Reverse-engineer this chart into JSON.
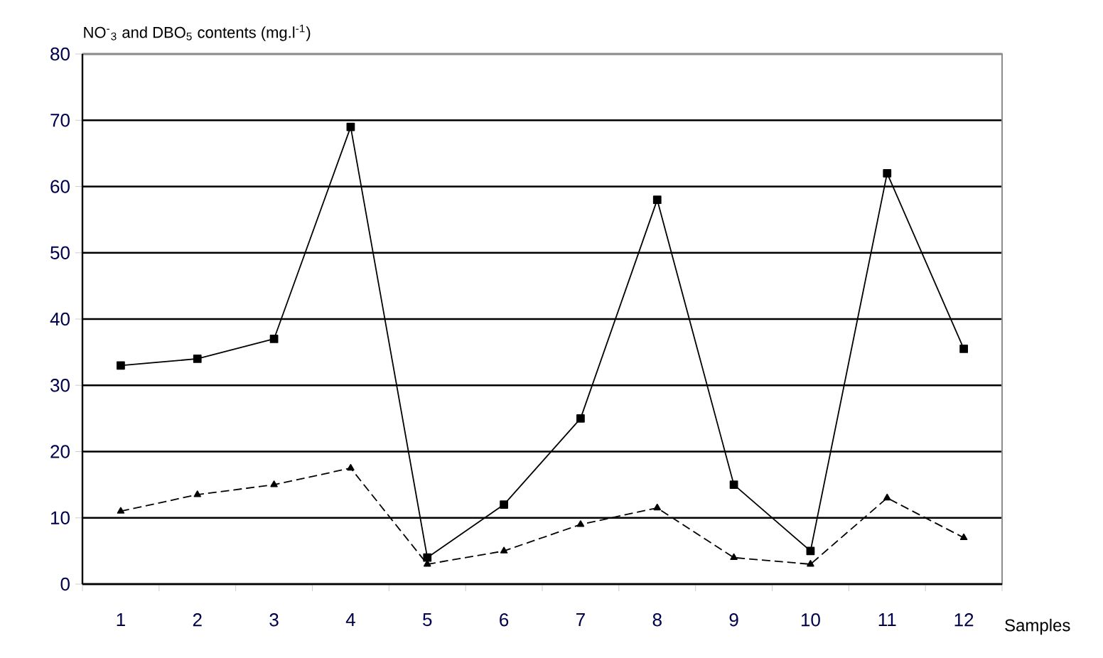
{
  "chart_data": {
    "type": "line",
    "ylabel": "NO$^{-}$$_{3}$ and DBO$_{5}$ contents (mg.l$^{-1}$)",
    "xlabel": "Samples",
    "categories": [
      "1",
      "2",
      "3",
      "4",
      "5",
      "6",
      "7",
      "8",
      "9",
      "10",
      "11",
      "12"
    ],
    "series": [
      {
        "color": "#000000",
        "marker": "square",
        "line_style": "solid",
        "values": [
          33,
          34,
          37,
          69,
          4,
          12,
          25,
          58,
          15,
          5,
          62,
          35.5
        ]
      },
      {
        "color": "#000000",
        "marker": "triangle",
        "line_style": "dashed",
        "values": [
          11,
          13.5,
          15,
          17.5,
          3,
          5,
          9,
          11.5,
          4,
          3,
          13,
          7
        ]
      }
    ],
    "ylim": [
      0,
      80
    ],
    "yticks": [
      0,
      10,
      20,
      30,
      40,
      50,
      60,
      70,
      80
    ],
    "grid": "y"
  }
}
